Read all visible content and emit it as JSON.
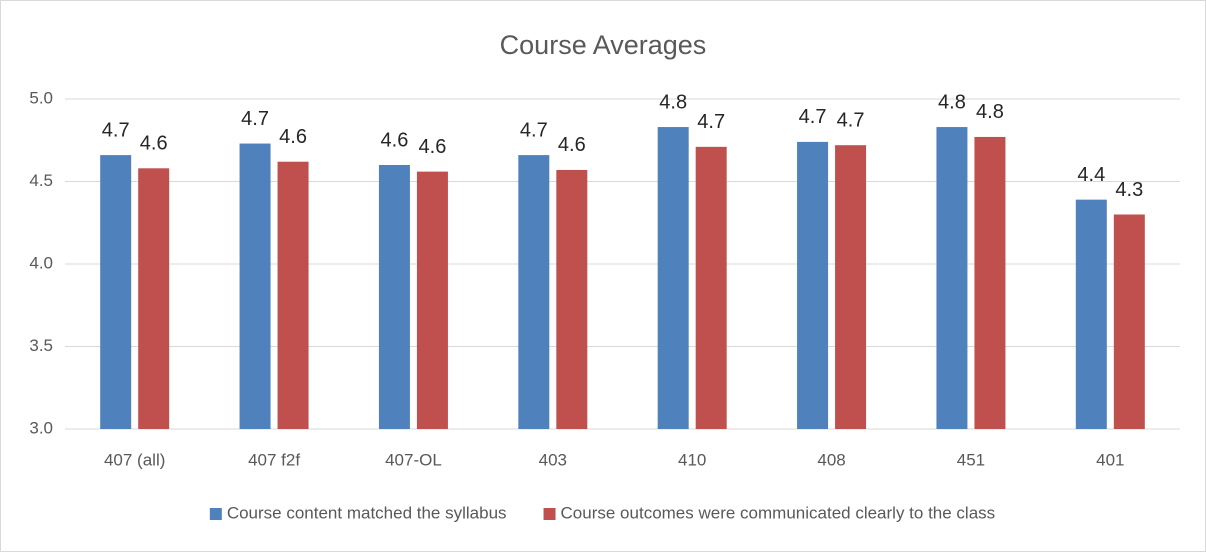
{
  "chart_data": {
    "type": "bar",
    "title": "Course Averages",
    "categories": [
      "407 (all)",
      "407 f2f",
      "407-OL",
      "403",
      "410",
      "408",
      "451",
      "401"
    ],
    "series": [
      {
        "name": "Course content matched the syllabus",
        "color": "#4f81bd",
        "values": [
          4.66,
          4.73,
          4.6,
          4.66,
          4.83,
          4.74,
          4.83,
          4.39
        ],
        "value_labels": [
          "4.7",
          "4.7",
          "4.6",
          "4.7",
          "4.8",
          "4.7",
          "4.8",
          "4.4"
        ]
      },
      {
        "name": "Course outcomes were communicated clearly to the class",
        "color": "#c0504d",
        "values": [
          4.58,
          4.62,
          4.56,
          4.57,
          4.71,
          4.72,
          4.77,
          4.3
        ],
        "value_labels": [
          "4.6",
          "4.6",
          "4.6",
          "4.6",
          "4.7",
          "4.7",
          "4.8",
          "4.3"
        ]
      }
    ],
    "ylim": [
      3,
      5
    ],
    "yticks": [
      {
        "value": 3,
        "label": "3.0"
      },
      3.5,
      {
        "value": 4,
        "label": "4.0"
      },
      4.5,
      {
        "value": 5,
        "label": "5.0"
      }
    ],
    "grid": true,
    "legend": "bottom"
  }
}
